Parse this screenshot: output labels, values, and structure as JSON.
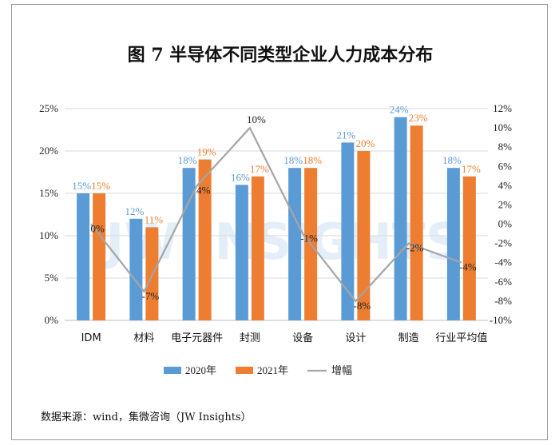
{
  "chart_data": {
    "type": "bar",
    "title": "图 7  半导体不同类型企业人力成本分布",
    "categories": [
      "IDM",
      "材料",
      "电子元器件",
      "封测",
      "设备",
      "设计",
      "制造",
      "行业平均值"
    ],
    "series": [
      {
        "name": "2020年",
        "values": [
          15,
          12,
          18,
          16,
          18,
          21,
          24,
          18
        ],
        "color": "#5B9BD5",
        "labels": [
          "15%",
          "12%",
          "18%",
          "16%",
          "18%",
          "21%",
          "24%",
          "18%"
        ]
      },
      {
        "name": "2021年",
        "values": [
          15,
          11,
          19,
          17,
          18,
          20,
          23,
          17
        ],
        "color": "#ED7D31",
        "labels": [
          "15%",
          "11%",
          "19%",
          "17%",
          "18%",
          "20%",
          "23%",
          "17%"
        ]
      }
    ],
    "line": {
      "name": "增幅",
      "values": [
        0,
        -7,
        4,
        10,
        -1,
        -8,
        -2,
        -4
      ],
      "color": "#A5A5A5",
      "labels": [
        "0%",
        "-7%",
        "4%",
        "10%",
        "-1%",
        "-8%",
        "-2%",
        "-4%"
      ]
    },
    "y_left": {
      "min": 0,
      "max": 25,
      "step": 5,
      "tick_labels": [
        "0%",
        "5%",
        "10%",
        "15%",
        "20%",
        "25%"
      ]
    },
    "y_right": {
      "min": -10,
      "max": 12,
      "step": 2,
      "tick_labels": [
        "-10%",
        "-8%",
        "-6%",
        "-4%",
        "-2%",
        "0%",
        "2%",
        "4%",
        "6%",
        "8%",
        "10%",
        "12%"
      ]
    },
    "legend_position": "bottom",
    "watermark": "JW INSIGHTS",
    "source": "数据来源：wind，集微咨询（JW Insights）"
  }
}
